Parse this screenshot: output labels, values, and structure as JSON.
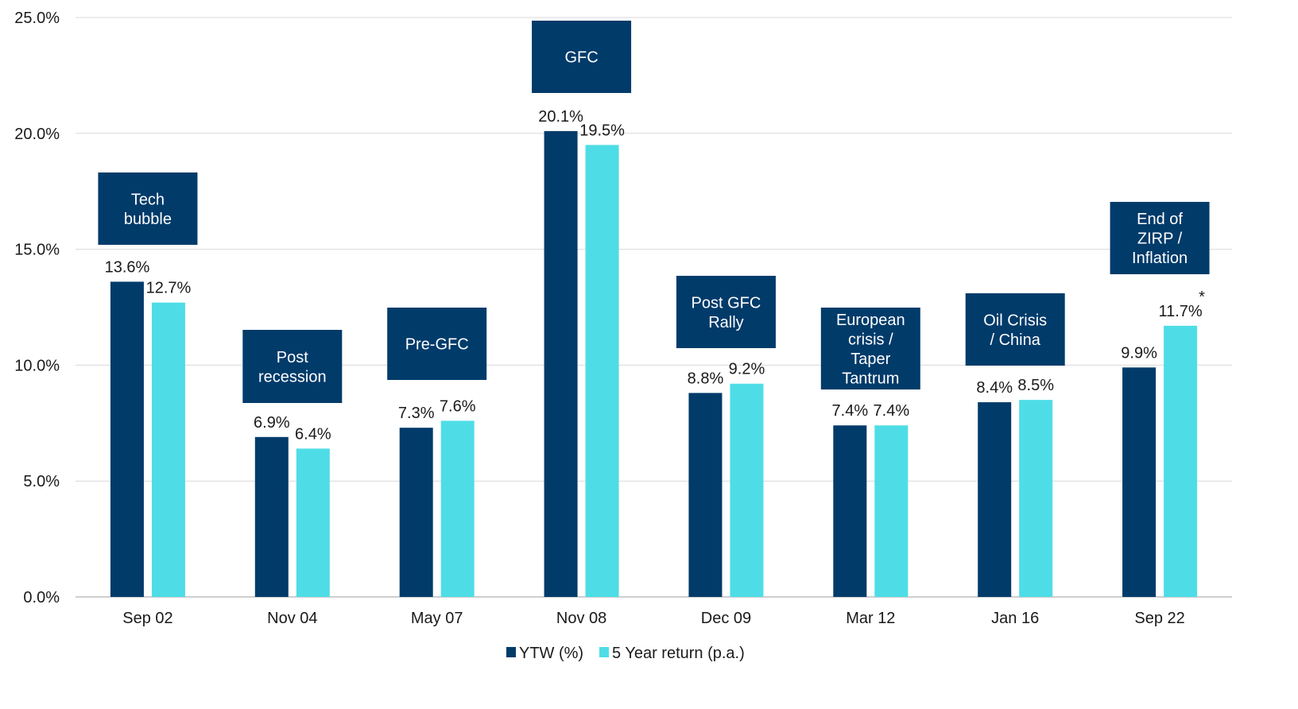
{
  "chart_data": {
    "type": "bar",
    "categories": [
      "Sep 02",
      "Nov 04",
      "May 07",
      "Nov 08",
      "Dec 09",
      "Mar 12",
      "Jan 16",
      "Sep 22"
    ],
    "series": [
      {
        "name": "YTW (%)",
        "color": "#003B6A",
        "values": [
          13.6,
          6.9,
          7.3,
          20.1,
          8.8,
          7.4,
          8.4,
          9.9
        ],
        "labels": [
          "13.6%",
          "6.9%",
          "7.3%",
          "20.1%",
          "8.8%",
          "7.4%",
          "8.4%",
          "9.9%"
        ]
      },
      {
        "name": "5 Year return (p.a.)",
        "color": "#4EDDE6",
        "values": [
          12.7,
          6.4,
          7.6,
          19.5,
          9.2,
          7.4,
          8.5,
          11.7
        ],
        "labels": [
          "12.7%",
          "6.4%",
          "7.6%",
          "19.5%",
          "9.2%",
          "7.4%",
          "8.5%",
          "11.7%"
        ]
      }
    ],
    "annotations": [
      {
        "category": "Sep 02",
        "lines": [
          "Tech",
          "bubble"
        ]
      },
      {
        "category": "Nov 04",
        "lines": [
          "Post",
          "recession"
        ]
      },
      {
        "category": "May 07",
        "lines": [
          "Pre-GFC"
        ]
      },
      {
        "category": "Nov 08",
        "lines": [
          "GFC"
        ]
      },
      {
        "category": "Dec 09",
        "lines": [
          "Post GFC",
          "Rally"
        ]
      },
      {
        "category": "Mar 12",
        "lines": [
          "European",
          "crisis /",
          "Taper",
          "Tantrum"
        ]
      },
      {
        "category": "Jan 16",
        "lines": [
          "Oil Crisis",
          "/ China"
        ]
      },
      {
        "category": "Sep 22",
        "lines": [
          "End of",
          "ZIRP /",
          "Inflation"
        ]
      }
    ],
    "footnote_marker": {
      "category": "Sep 22",
      "series": 1,
      "text": "*"
    },
    "yticks": [
      "0.0%",
      "5.0%",
      "10.0%",
      "15.0%",
      "20.0%",
      "25.0%"
    ],
    "ylim": [
      0,
      25
    ],
    "grid": true,
    "legend_position": "bottom-center",
    "annotation_color": "#003B6A",
    "grid_color": "#D9D9D9",
    "title": "",
    "xlabel": "",
    "ylabel": ""
  }
}
